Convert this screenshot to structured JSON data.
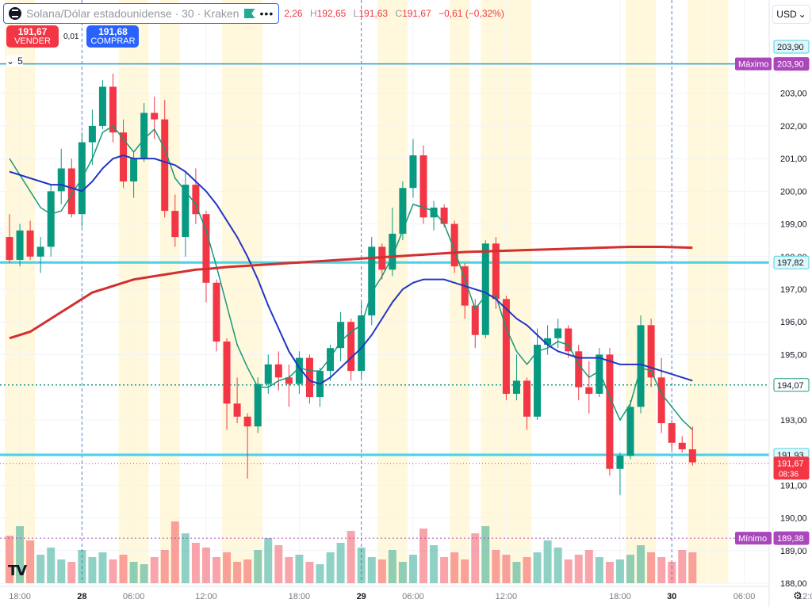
{
  "header": {
    "symbol": "Solana/Dólar estadounidense · 30 · Kraken",
    "more_icon": "more-dots-icon",
    "ohlc": {
      "o_value": "2,26",
      "h_label": "H",
      "h_value": "192,65",
      "l_label": "L",
      "l_value": "191,63",
      "c_label": "C",
      "c_value": "191,67",
      "change": "−0,61 (−0,32%)"
    }
  },
  "trade": {
    "sell_price": "191,67",
    "sell_label": "VENDER",
    "spread": "0,01",
    "buy_price": "191,68",
    "buy_label": "COMPRAR"
  },
  "indicators_count": "5",
  "currency": "USD",
  "colors": {
    "up": "#089981",
    "down": "#f23645",
    "sma_red": "#d32f2f",
    "ma_blue": "#2136c4",
    "ma_green": "#16997a",
    "hline": "#4dd0e1"
  },
  "chart_data": {
    "type": "candlestick",
    "y_range": [
      188.0,
      204.4
    ],
    "y_ticks": [
      "188,00",
      "189,00",
      "190,00",
      "191,00",
      "192,00",
      "193,00",
      "194,00",
      "195,00",
      "196,00",
      "197,00",
      "198,00",
      "199,00",
      "200,00",
      "201,00",
      "202,00",
      "203,00"
    ],
    "x_ticks": [
      {
        "label": "18:00",
        "bold": false,
        "i": 1
      },
      {
        "label": "28",
        "bold": true,
        "i": 7
      },
      {
        "label": "06:00",
        "bold": false,
        "i": 12
      },
      {
        "label": "12:00",
        "bold": false,
        "i": 19
      },
      {
        "label": "18:00",
        "bold": false,
        "i": 28
      },
      {
        "label": "29",
        "bold": true,
        "i": 34
      },
      {
        "label": "06:00",
        "bold": false,
        "i": 39
      },
      {
        "label": "12:00",
        "bold": false,
        "i": 48
      },
      {
        "label": "18:00",
        "bold": false,
        "i": 59
      },
      {
        "label": "30",
        "bold": true,
        "i": 64
      },
      {
        "label": "06:00",
        "bold": false,
        "i": 71
      },
      {
        "label": "12:0",
        "bold": false,
        "i": 77
      }
    ],
    "candles": [
      [
        198.6,
        199.3,
        197.8,
        197.9
      ],
      [
        197.9,
        199.0,
        197.7,
        198.8
      ],
      [
        198.8,
        199.1,
        197.9,
        198.0
      ],
      [
        198.0,
        198.6,
        197.5,
        198.3
      ],
      [
        198.3,
        200.2,
        198.0,
        200.0
      ],
      [
        200.0,
        201.3,
        199.6,
        200.7
      ],
      [
        200.7,
        201.0,
        199.2,
        199.3
      ],
      [
        199.3,
        201.8,
        198.9,
        201.5
      ],
      [
        201.5,
        202.5,
        200.8,
        202.0
      ],
      [
        202.0,
        203.4,
        201.9,
        203.2
      ],
      [
        203.2,
        203.6,
        201.5,
        201.8
      ],
      [
        201.8,
        202.2,
        200.1,
        200.3
      ],
      [
        200.3,
        201.2,
        199.8,
        201.0
      ],
      [
        201.0,
        202.7,
        200.9,
        202.4
      ],
      [
        202.4,
        202.9,
        201.6,
        202.2
      ],
      [
        202.2,
        202.8,
        199.2,
        199.4
      ],
      [
        199.4,
        199.9,
        198.3,
        198.6
      ],
      [
        198.6,
        200.6,
        198.0,
        200.2
      ],
      [
        200.2,
        200.7,
        199.0,
        199.3
      ],
      [
        199.3,
        199.4,
        196.6,
        197.2
      ],
      [
        197.2,
        197.3,
        195.1,
        195.4
      ],
      [
        195.4,
        195.5,
        192.7,
        193.5
      ],
      [
        193.5,
        194.3,
        192.9,
        193.1
      ],
      [
        193.1,
        193.2,
        191.2,
        192.8
      ],
      [
        192.8,
        194.3,
        192.6,
        194.1
      ],
      [
        194.1,
        195.0,
        193.8,
        194.7
      ],
      [
        194.7,
        195.1,
        193.9,
        194.3
      ],
      [
        194.3,
        194.7,
        193.4,
        194.1
      ],
      [
        194.1,
        195.1,
        193.8,
        194.9
      ],
      [
        194.9,
        195.0,
        193.5,
        193.7
      ],
      [
        193.7,
        194.6,
        193.4,
        194.5
      ],
      [
        194.5,
        195.3,
        194.2,
        195.2
      ],
      [
        195.2,
        196.3,
        194.8,
        196.0
      ],
      [
        196.0,
        196.1,
        194.2,
        194.5
      ],
      [
        194.5,
        196.6,
        194.3,
        196.2
      ],
      [
        196.2,
        198.6,
        195.9,
        198.3
      ],
      [
        198.3,
        198.4,
        197.3,
        197.6
      ],
      [
        197.6,
        199.5,
        197.4,
        198.7
      ],
      [
        198.7,
        200.3,
        198.5,
        200.1
      ],
      [
        200.1,
        201.6,
        199.8,
        201.1
      ],
      [
        201.1,
        201.4,
        199.0,
        199.2
      ],
      [
        199.2,
        199.7,
        198.8,
        199.5
      ],
      [
        199.5,
        199.6,
        198.9,
        199.0
      ],
      [
        199.0,
        199.1,
        197.5,
        197.7
      ],
      [
        197.7,
        197.8,
        196.1,
        196.5
      ],
      [
        196.5,
        196.7,
        195.2,
        195.6
      ],
      [
        195.6,
        198.5,
        195.5,
        198.4
      ],
      [
        198.4,
        198.6,
        196.4,
        196.7
      ],
      [
        196.7,
        196.8,
        193.6,
        193.8
      ],
      [
        193.8,
        195.0,
        193.6,
        194.2
      ],
      [
        194.2,
        194.3,
        192.7,
        193.1
      ],
      [
        193.1,
        195.8,
        193.0,
        195.3
      ],
      [
        195.3,
        195.9,
        195.0,
        195.5
      ],
      [
        195.5,
        196.1,
        195.2,
        195.8
      ],
      [
        195.8,
        195.9,
        194.9,
        195.1
      ],
      [
        195.1,
        195.3,
        193.6,
        194.0
      ],
      [
        194.0,
        194.8,
        193.2,
        193.8
      ],
      [
        193.8,
        195.2,
        193.7,
        195.0
      ],
      [
        195.0,
        195.2,
        191.3,
        191.5
      ],
      [
        191.5,
        192.0,
        190.7,
        191.9
      ],
      [
        191.9,
        193.6,
        191.8,
        193.4
      ],
      [
        193.4,
        196.2,
        193.2,
        195.9
      ],
      [
        195.9,
        196.1,
        194.0,
        194.3
      ],
      [
        194.3,
        194.9,
        192.6,
        192.9
      ],
      [
        192.9,
        193.0,
        192.1,
        192.3
      ],
      [
        192.3,
        192.5,
        192.0,
        192.1
      ],
      [
        192.1,
        192.8,
        191.6,
        191.7
      ]
    ],
    "volumes": [
      20,
      24,
      18,
      12,
      15,
      10,
      9,
      14,
      11,
      13,
      10,
      12,
      9,
      8,
      11,
      14,
      26,
      21,
      17,
      15,
      11,
      13,
      9,
      10,
      14,
      19,
      16,
      11,
      12,
      9,
      8,
      13,
      17,
      22,
      15,
      11,
      10,
      14,
      9,
      12,
      23,
      16,
      11,
      13,
      10,
      21,
      24,
      14,
      12,
      9,
      11,
      13,
      18,
      15,
      10,
      12,
      14,
      11,
      9,
      10,
      12,
      16,
      13,
      11,
      9,
      14,
      13
    ],
    "lines": {
      "sma_red": [
        195.5,
        195.6,
        195.7,
        195.9,
        196.1,
        196.3,
        196.5,
        196.7,
        196.9,
        197.0,
        197.1,
        197.2,
        197.3,
        197.35,
        197.4,
        197.45,
        197.5,
        197.55,
        197.6,
        197.62,
        197.65,
        197.68,
        197.7,
        197.72,
        197.74,
        197.76,
        197.78,
        197.8,
        197.82,
        197.84,
        197.86,
        197.88,
        197.9,
        197.92,
        197.94,
        197.96,
        197.98,
        198.0,
        198.02,
        198.04,
        198.06,
        198.08,
        198.1,
        198.12,
        198.14,
        198.15,
        198.16,
        198.17,
        198.18,
        198.19,
        198.2,
        198.21,
        198.22,
        198.23,
        198.24,
        198.25,
        198.26,
        198.27,
        198.28,
        198.29,
        198.3,
        198.3,
        198.3,
        198.3,
        198.29,
        198.28,
        198.27
      ],
      "ma_blue": [
        200.6,
        200.5,
        200.4,
        200.3,
        200.2,
        200.2,
        200.1,
        200.0,
        200.3,
        200.7,
        201.0,
        201.1,
        201.0,
        201.0,
        201.0,
        200.9,
        200.8,
        200.6,
        200.3,
        200.0,
        199.6,
        199.1,
        198.6,
        198.0,
        197.3,
        196.5,
        195.8,
        195.1,
        194.6,
        194.2,
        194.1,
        194.3,
        194.6,
        194.9,
        195.2,
        195.6,
        196.1,
        196.6,
        197.0,
        197.2,
        197.3,
        197.3,
        197.3,
        197.2,
        197.1,
        197.0,
        196.9,
        196.7,
        196.4,
        196.1,
        195.9,
        195.6,
        195.3,
        195.1,
        195.0,
        194.9,
        194.9,
        194.9,
        194.8,
        194.7,
        194.7,
        194.7,
        194.6,
        194.5,
        194.4,
        194.3,
        194.2
      ],
      "ma_green": [
        201.0,
        200.5,
        200.0,
        199.5,
        199.3,
        199.4,
        199.9,
        200.4,
        201.0,
        201.8,
        202.0,
        201.6,
        201.2,
        201.6,
        201.9,
        201.3,
        200.4,
        200.0,
        199.6,
        198.8,
        197.7,
        196.5,
        195.3,
        194.6,
        194.0,
        194.0,
        194.2,
        194.3,
        194.6,
        194.5,
        194.5,
        194.9,
        195.4,
        195.7,
        195.9,
        196.9,
        197.4,
        198.0,
        198.8,
        199.6,
        199.5,
        199.4,
        199.0,
        198.2,
        197.3,
        196.4,
        196.8,
        196.8,
        195.8,
        195.1,
        194.7,
        195.1,
        195.2,
        195.4,
        195.3,
        194.7,
        194.3,
        194.5,
        193.7,
        193.0,
        193.5,
        194.6,
        194.5,
        193.8,
        193.4,
        193.0,
        192.7
      ]
    },
    "price_labels": [
      {
        "value": "203,90",
        "tag": "Máximo",
        "y": 203.9,
        "style": "max"
      },
      {
        "value": "197,82",
        "y": 197.82,
        "style": "hline"
      },
      {
        "value": "194,07",
        "y": 194.07,
        "style": "dotted"
      },
      {
        "value": "191,93",
        "y": 191.93,
        "style": "hline"
      },
      {
        "value": "191,67",
        "sub": "08:36",
        "y": 191.67,
        "style": "last"
      },
      {
        "value": "189,38",
        "tag": "Mínimo",
        "y": 189.38,
        "style": "min"
      }
    ],
    "top_right_label": "203,90"
  }
}
